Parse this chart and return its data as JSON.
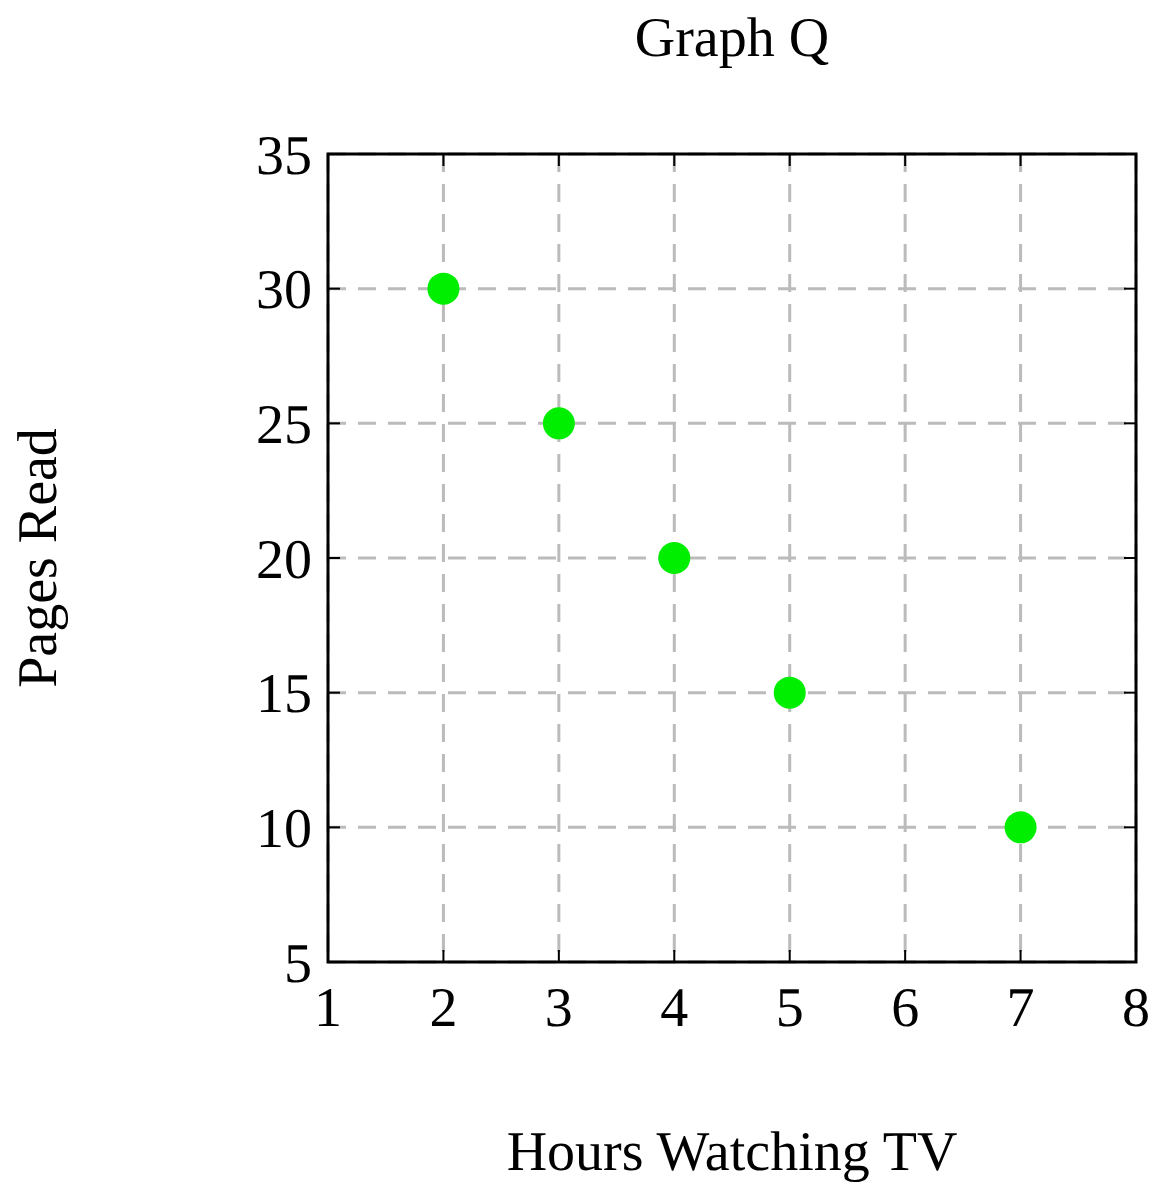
{
  "chart_data": {
    "type": "scatter",
    "title": "Graph Q",
    "xlabel": "Hours Watching TV",
    "ylabel": "Pages Read",
    "x": [
      2,
      3,
      4,
      5,
      7
    ],
    "series": [
      {
        "color": "#00ee00",
        "values": [
          30,
          25,
          20,
          15,
          10
        ]
      }
    ],
    "xlim": [
      1,
      8
    ],
    "ylim": [
      5,
      35
    ],
    "xticks": [
      1,
      2,
      3,
      4,
      5,
      6,
      7,
      8
    ],
    "yticks": [
      5,
      10,
      15,
      20,
      25,
      30,
      35
    ],
    "grid": true,
    "marker": "circle"
  }
}
